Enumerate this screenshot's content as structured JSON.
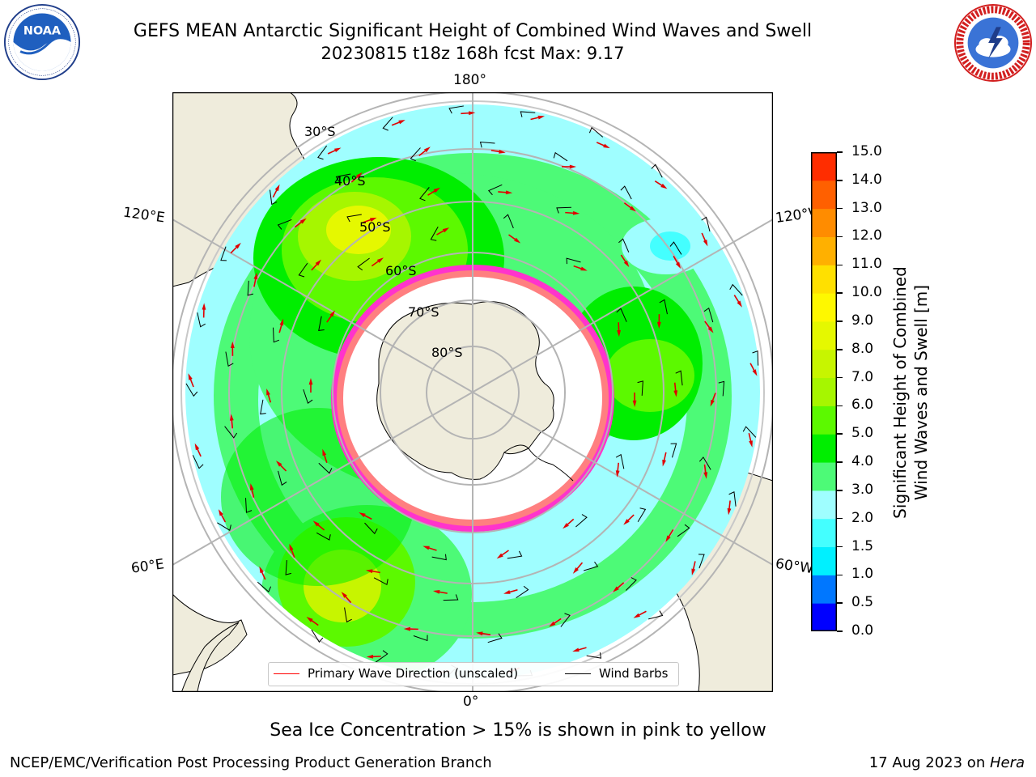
{
  "title": {
    "line1": "GEFS MEAN Antarctic Significant Height of Combined Wind Waves and Swell",
    "line2": "20230815 t18z 168h fcst   Max: 9.17"
  },
  "logos": {
    "left": {
      "icon": "noaa-logo",
      "text": "NOAA",
      "ring_text": "NATIONAL OCEANIC AND ATMOSPHERIC ADMINISTRATION · U.S. DEPARTMENT OF COMMERCE"
    },
    "right": {
      "icon": "nws-logo",
      "ring_text": "NATIONAL WEATHER SERVICE"
    }
  },
  "map": {
    "projection": "south-polar-stereographic",
    "longitude_labels": {
      "top": "180°",
      "bottom": "0°",
      "left_upper": "120°E",
      "left_lower": "60°E",
      "right_upper": "120°W",
      "right_lower": "60°W"
    },
    "latitude_labels": [
      "30°S",
      "40°S",
      "50°S",
      "60°S",
      "70°S",
      "80°S"
    ],
    "colors": {
      "land": "#efecdc",
      "ice_sheet": "#ffffff",
      "grid": "#b4b4b4",
      "sea_ice": "#ff33cc",
      "arrow": "#ff0000",
      "barb": "#000000"
    }
  },
  "colorbar": {
    "label_line1": "Significant Height of Combined",
    "label_line2": "Wind Waves and Swell [m]",
    "levels": [
      "0.0",
      "0.5",
      "1.0",
      "1.5",
      "2.0",
      "3.0",
      "4.0",
      "5.0",
      "6.0",
      "7.0",
      "8.0",
      "9.0",
      "10.0",
      "11.0",
      "12.0",
      "13.0",
      "14.0",
      "15.0"
    ],
    "colors": [
      "#0000ff",
      "#0077ff",
      "#00f0ff",
      "#44ffff",
      "#9ffeff",
      "#4dfa77",
      "#00ee00",
      "#5cf900",
      "#a6f600",
      "#c7f500",
      "#e5f800",
      "#fef800",
      "#ffe000",
      "#ffb000",
      "#ff8c00",
      "#ff6000",
      "#ff2d00"
    ]
  },
  "legend": {
    "wave_label": "Primary Wave Direction (unscaled)",
    "barb_label": "Wind Barbs",
    "wave_color": "#ff0000",
    "barb_color": "#000000"
  },
  "caption": "Sea Ice Concentration > 15% is shown in pink to yellow",
  "footer": {
    "left": "NCEP/EMC/Verification Post Processing Product Generation Branch",
    "date": "17 Aug 2023 on ",
    "machine": "Hera"
  }
}
